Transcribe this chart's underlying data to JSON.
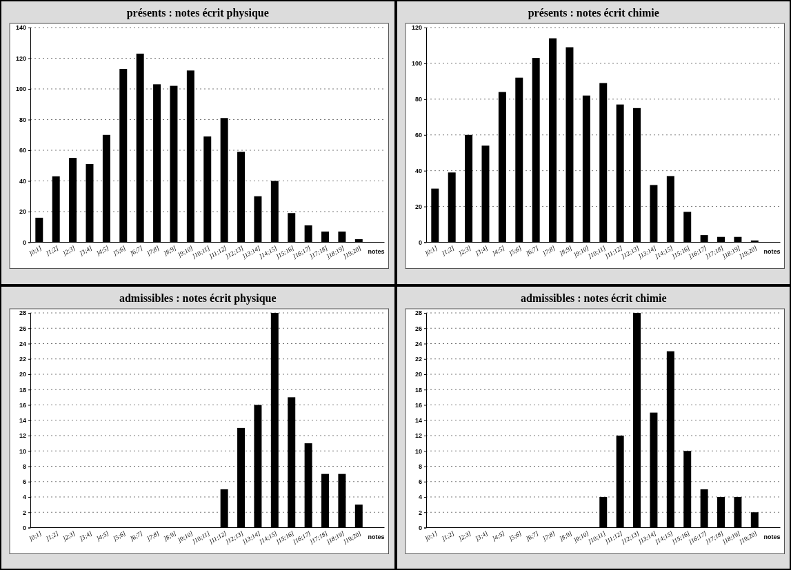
{
  "chart_data": [
    {
      "type": "bar",
      "title": "présents : notes écrit physique",
      "xlabel": "notes",
      "categories": [
        "]0;1]",
        "]1;2]",
        "]2;3]",
        "]3;4]",
        "]4;5]",
        "]5;6]",
        "]6;7]",
        "]7;8]",
        "]8;9]",
        "]9;10]",
        "]10;11]",
        "]11;12]",
        "]12;13]",
        "]13;14]",
        "]14;15]",
        "]15;16]",
        "]16;17]",
        "]17;18]",
        "]18;19]",
        "]19;20]"
      ],
      "values": [
        16,
        43,
        55,
        51,
        70,
        113,
        123,
        103,
        102,
        112,
        69,
        81,
        59,
        30,
        40,
        19,
        11,
        7,
        7,
        2
      ],
      "color": "#000000",
      "ylim": [
        0,
        140
      ],
      "yticks": [
        0,
        20,
        40,
        60,
        80,
        100,
        120,
        140
      ],
      "grid": "y"
    },
    {
      "type": "bar",
      "title": "présents : notes écrit chimie",
      "xlabel": "notes",
      "categories": [
        "]0;1]",
        "]1;2]",
        "]2;3]",
        "]3;4]",
        "]4;5]",
        "]5;6]",
        "]6;7]",
        "]7;8]",
        "]8;9]",
        "]9;10]",
        "]10;11]",
        "]11;12]",
        "]12;13]",
        "]13;14]",
        "]14;15]",
        "]15;16]",
        "]16;17]",
        "]17;18]",
        "]18;19]",
        "]19;20]"
      ],
      "values": [
        30,
        39,
        60,
        54,
        84,
        92,
        103,
        114,
        109,
        82,
        89,
        77,
        75,
        32,
        37,
        17,
        4,
        3,
        3,
        1
      ],
      "color": "#000000",
      "ylim": [
        0,
        120
      ],
      "yticks": [
        0,
        20,
        40,
        60,
        80,
        100,
        120
      ],
      "grid": "y"
    },
    {
      "type": "bar",
      "title": "admissibles : notes écrit physique",
      "xlabel": "notes",
      "categories": [
        "]0;1]",
        "]1;2]",
        "]2;3]",
        "]3;4]",
        "]4;5]",
        "]5;6]",
        "]6;7]",
        "]7;8]",
        "]8;9]",
        "]9;10]",
        "]10;11]",
        "]11;12]",
        "]12;13]",
        "]13;14]",
        "]14;15]",
        "]15;16]",
        "]16;17]",
        "]17;18]",
        "]18;19]",
        "]19;20]"
      ],
      "values": [
        0,
        0,
        0,
        0,
        0,
        0,
        0,
        0,
        0,
        0,
        0,
        5,
        13,
        16,
        28,
        17,
        11,
        7,
        7,
        3
      ],
      "color": "#000000",
      "ylim": [
        0,
        28
      ],
      "yticks": [
        0,
        2,
        4,
        6,
        8,
        10,
        12,
        14,
        16,
        18,
        20,
        22,
        24,
        26,
        28
      ],
      "grid": "y"
    },
    {
      "type": "bar",
      "title": "admissibles : notes écrit chimie",
      "xlabel": "notes",
      "categories": [
        "]0;1]",
        "]1;2]",
        "]2;3]",
        "]3;4]",
        "]4;5]",
        "]5;6]",
        "]6;7]",
        "]7;8]",
        "]8;9]",
        "]9;10]",
        "]10;11]",
        "]11;12]",
        "]12;13]",
        "]13;14]",
        "]14;15]",
        "]15;16]",
        "]16;17]",
        "]17;18]",
        "]18;19]",
        "]19;20]"
      ],
      "values": [
        0,
        0,
        0,
        0,
        0,
        0,
        0,
        0,
        0,
        0,
        4,
        12,
        28,
        15,
        23,
        10,
        5,
        4,
        4,
        2
      ],
      "color": "#000000",
      "ylim": [
        0,
        28
      ],
      "yticks": [
        0,
        2,
        4,
        6,
        8,
        10,
        12,
        14,
        16,
        18,
        20,
        22,
        24,
        26,
        28
      ],
      "grid": "y"
    }
  ]
}
